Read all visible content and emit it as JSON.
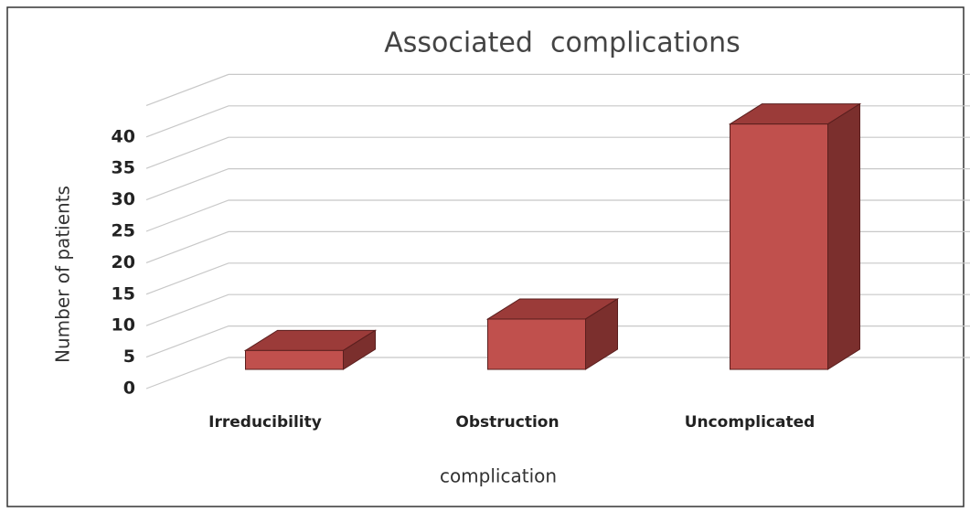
{
  "chart_data": {
    "type": "bar3d",
    "title": "Associated  complications",
    "y_label": "Number of patients",
    "x_label": "complication",
    "categories": [
      "Irreducibility",
      "Obstruction",
      "Uncomplicated"
    ],
    "values": [
      3,
      8,
      39
    ],
    "color": "#c0504d",
    "top_color": "#9b3b39",
    "side_color": "#7b2f2d",
    "ylim": [
      0,
      45
    ],
    "yticks": [
      0,
      5,
      10,
      15,
      20,
      25,
      30,
      35,
      40
    ],
    "grid": true
  }
}
